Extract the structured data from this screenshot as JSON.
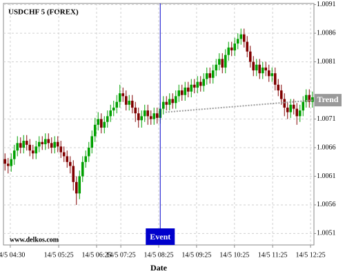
{
  "chart_data": {
    "type": "candlestick",
    "title": "USDCHF 5 (FOREX)",
    "x_label": "Date",
    "watermark": "www.delkos.com",
    "up_color": "#00a000",
    "down_color": "#800000",
    "grid": true,
    "xlim": [
      -0.5,
      99.5
    ],
    "ylim": [
      1.0049,
      1.00912
    ],
    "xticks": [
      {
        "value": 1.7,
        "label": "14/5 04:30"
      },
      {
        "value": 17.3,
        "label": "14/5 05:25"
      },
      {
        "value": 29.5,
        "label": "14/5 06:25"
      },
      {
        "value": 37.3,
        "label": "14/5 07:25"
      },
      {
        "value": 49.5,
        "label": "14/5 08:25"
      },
      {
        "value": 61.7,
        "label": "14/5 09:25"
      },
      {
        "value": 73.9,
        "label": "14/5 10:25"
      },
      {
        "value": 86.2,
        "label": "14/5 11:25"
      },
      {
        "value": 98.4,
        "label": "14/5 12:25"
      }
    ],
    "yticks": [
      1.0051,
      1.0056,
      1.0061,
      1.0066,
      1.0071,
      1.0081,
      1.0086,
      1.0091
    ],
    "open": [
      1.0064,
      1.00632,
      1.00628,
      1.0064,
      1.00655,
      1.00668,
      1.0066,
      1.00672,
      1.00665,
      1.00655,
      1.0065,
      1.00662,
      1.0067,
      1.00666,
      1.00675,
      1.00668,
      1.0066,
      1.0067,
      1.00662,
      1.00652,
      1.00645,
      1.00635,
      1.00628,
      1.006,
      1.0058,
      1.0061,
      1.00635,
      1.00645,
      1.0066,
      1.0068,
      1.007,
      1.0071,
      1.00695,
      1.00705,
      1.00715,
      1.00725,
      1.0073,
      1.0074,
      1.00755,
      1.0075,
      1.00735,
      1.00742,
      1.0073,
      1.0072,
      1.00708,
      1.00715,
      1.00725,
      1.00715,
      1.0071,
      1.0072,
      1.00712,
      1.00728,
      1.0074,
      1.00735,
      1.00745,
      1.00738,
      1.0075,
      1.0076,
      1.00752,
      1.00765,
      1.00758,
      1.0077,
      1.00765,
      1.00775,
      1.00768,
      1.0078,
      1.0079,
      1.00782,
      1.00795,
      1.00805,
      1.00815,
      1.008,
      1.00822,
      1.00835,
      1.0083,
      1.00842,
      1.0085,
      1.00858,
      1.00845,
      1.00828,
      1.0081,
      1.00795,
      1.00805,
      1.0079,
      1.008,
      1.00795,
      1.00785,
      1.0079,
      1.0077,
      1.0076,
      1.00745,
      1.0073,
      1.00722,
      1.00735,
      1.00728,
      1.00715,
      1.00725,
      1.0074,
      1.00752,
      1.0074
    ],
    "high": [
      1.0065,
      1.00642,
      1.0065,
      1.00665,
      1.0068,
      1.00678,
      1.00682,
      1.00682,
      1.00675,
      1.00665,
      1.00672,
      1.0068,
      1.0068,
      1.00685,
      1.00685,
      1.00678,
      1.0068,
      1.0068,
      1.00672,
      1.00662,
      1.00655,
      1.00645,
      1.00638,
      1.0061,
      1.0062,
      1.00645,
      1.00655,
      1.0067,
      1.0069,
      1.00712,
      1.00722,
      1.0072,
      1.00715,
      1.00725,
      1.00735,
      1.00742,
      1.00752,
      1.0077,
      1.00765,
      1.0076,
      1.00752,
      1.00752,
      1.0074,
      1.0073,
      1.00725,
      1.00735,
      1.00735,
      1.00725,
      1.0073,
      1.0073,
      1.00738,
      1.0075,
      1.0075,
      1.00755,
      1.00755,
      1.0076,
      1.0077,
      1.0077,
      1.00775,
      1.00775,
      1.0078,
      1.0078,
      1.00785,
      1.00785,
      1.0079,
      1.008,
      1.008,
      1.00805,
      1.00815,
      1.00825,
      1.00825,
      1.00832,
      1.00845,
      1.00845,
      1.00852,
      1.0086,
      1.00868,
      1.00868,
      1.00855,
      1.00838,
      1.0082,
      1.00815,
      1.00815,
      1.0081,
      1.0081,
      1.00805,
      1.008,
      1.008,
      1.0078,
      1.0077,
      1.00755,
      1.0074,
      1.00745,
      1.00745,
      1.00738,
      1.00735,
      1.0075,
      1.00762,
      1.00762,
      1.00758
    ],
    "low": [
      1.0062,
      1.00615,
      1.00618,
      1.0063,
      1.00645,
      1.0065,
      1.0065,
      1.00655,
      1.00645,
      1.0064,
      1.0064,
      1.00652,
      1.00656,
      1.00656,
      1.00658,
      1.0065,
      1.0065,
      1.00652,
      1.00642,
      1.00635,
      1.00625,
      1.00615,
      1.00585,
      1.0056,
      1.0057,
      1.006,
      1.00625,
      1.00635,
      1.0065,
      1.0067,
      1.0069,
      1.00685,
      1.00685,
      1.00695,
      1.00705,
      1.00715,
      1.0072,
      1.0073,
      1.0074,
      1.00725,
      1.00725,
      1.0072,
      1.00705,
      1.00695,
      1.00695,
      1.00705,
      1.007,
      1.007,
      1.007,
      1.00702,
      1.00702,
      1.00718,
      1.00725,
      1.00725,
      1.00728,
      1.00728,
      1.0074,
      1.00742,
      1.00742,
      1.00748,
      1.00748,
      1.00755,
      1.00755,
      1.00758,
      1.00758,
      1.0077,
      1.00772,
      1.00772,
      1.00785,
      1.00795,
      1.0079,
      1.0079,
      1.00812,
      1.0082,
      1.0082,
      1.00832,
      1.0084,
      1.00835,
      1.00818,
      1.008,
      1.00785,
      1.00785,
      1.0078,
      1.0078,
      1.00785,
      1.00775,
      1.00775,
      1.0076,
      1.0075,
      1.00735,
      1.00715,
      1.0071,
      1.00712,
      1.00718,
      1.007,
      1.00705,
      1.00715,
      1.0073,
      1.0073,
      1.0073
    ],
    "close": [
      1.00632,
      1.00628,
      1.0064,
      1.00655,
      1.00668,
      1.0066,
      1.00672,
      1.00665,
      1.00655,
      1.0065,
      1.00662,
      1.0067,
      1.00666,
      1.00675,
      1.00668,
      1.0066,
      1.0067,
      1.00662,
      1.00652,
      1.00645,
      1.00635,
      1.00628,
      1.006,
      1.0058,
      1.0061,
      1.00635,
      1.00645,
      1.0066,
      1.0068,
      1.007,
      1.0071,
      1.00695,
      1.00705,
      1.00715,
      1.00725,
      1.0073,
      1.0074,
      1.00755,
      1.0075,
      1.00735,
      1.00742,
      1.0073,
      1.0072,
      1.00708,
      1.00715,
      1.00725,
      1.00715,
      1.0071,
      1.0072,
      1.00712,
      1.00728,
      1.0074,
      1.00735,
      1.00745,
      1.00738,
      1.0075,
      1.0076,
      1.00752,
      1.00765,
      1.00758,
      1.0077,
      1.00765,
      1.00775,
      1.00768,
      1.0078,
      1.0079,
      1.00782,
      1.00795,
      1.00805,
      1.00815,
      1.008,
      1.00822,
      1.00835,
      1.0083,
      1.00842,
      1.0085,
      1.00858,
      1.00845,
      1.00828,
      1.0081,
      1.00795,
      1.00805,
      1.0079,
      1.008,
      1.00795,
      1.00785,
      1.0079,
      1.0077,
      1.0076,
      1.00745,
      1.0073,
      1.00722,
      1.00735,
      1.00728,
      1.00715,
      1.00725,
      1.0074,
      1.00752,
      1.0074,
      1.00748
    ],
    "event": {
      "text": "Event",
      "x": 50,
      "color": "#0000cc"
    },
    "trend": {
      "text": "Trend",
      "x": [
        51.7,
        99.5
      ],
      "y": [
        1.00722,
        1.00743
      ],
      "color": "#999999"
    }
  }
}
